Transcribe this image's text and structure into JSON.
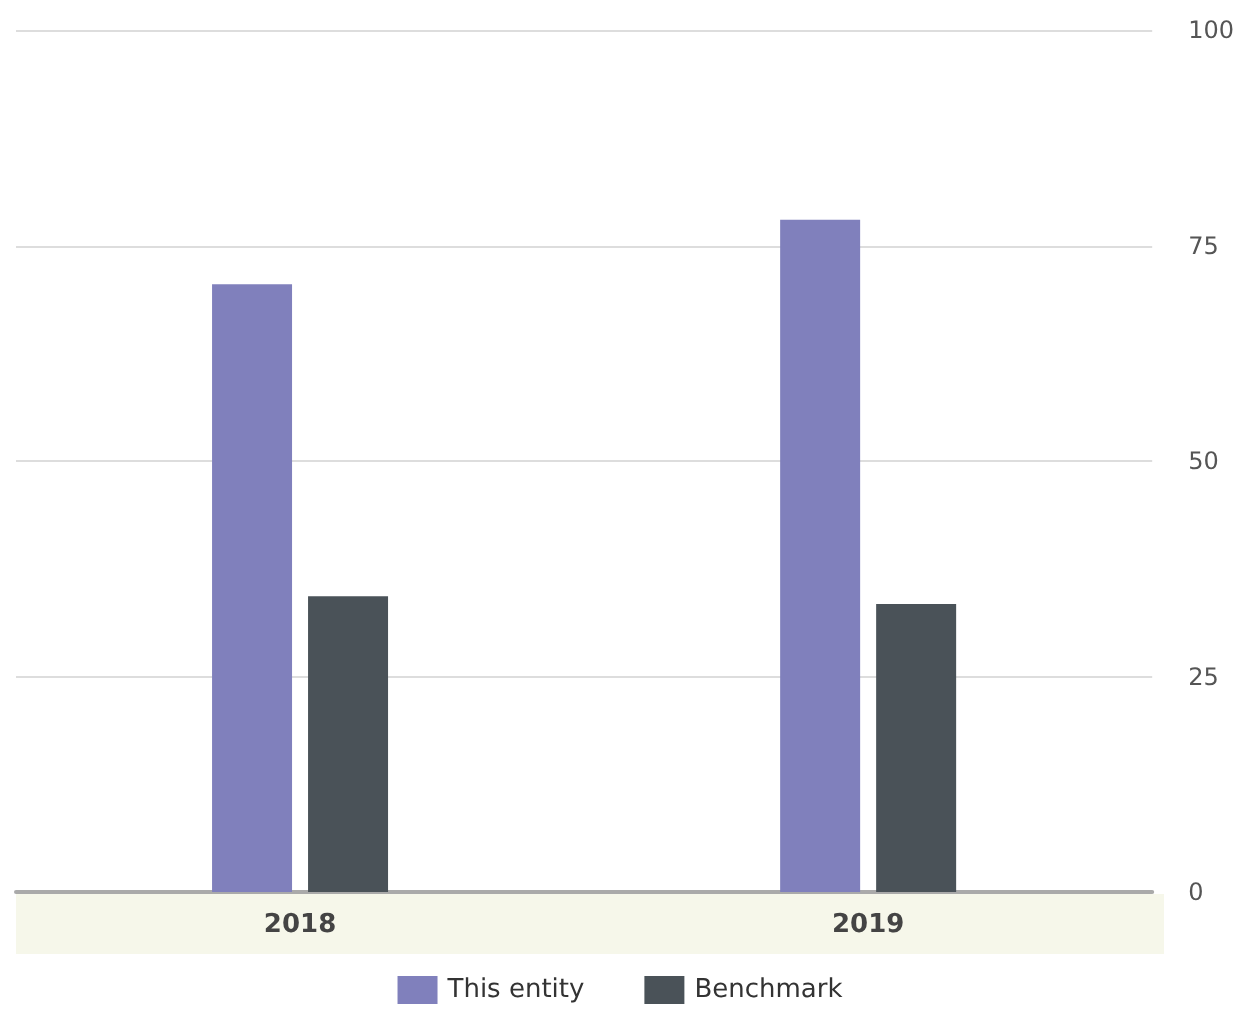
{
  "chart_data": {
    "type": "bar",
    "categories": [
      "2018",
      "2019"
    ],
    "series": [
      {
        "name": "This entity",
        "color": "#8080bc",
        "values": [
          70.5,
          78
        ]
      },
      {
        "name": "Benchmark",
        "color": "#4a5258",
        "values": [
          34.3,
          33.4
        ]
      }
    ],
    "ylim": [
      0,
      100
    ],
    "yticks": [
      0,
      25,
      50,
      75,
      100
    ],
    "grid": "y",
    "legend": "bottom"
  }
}
